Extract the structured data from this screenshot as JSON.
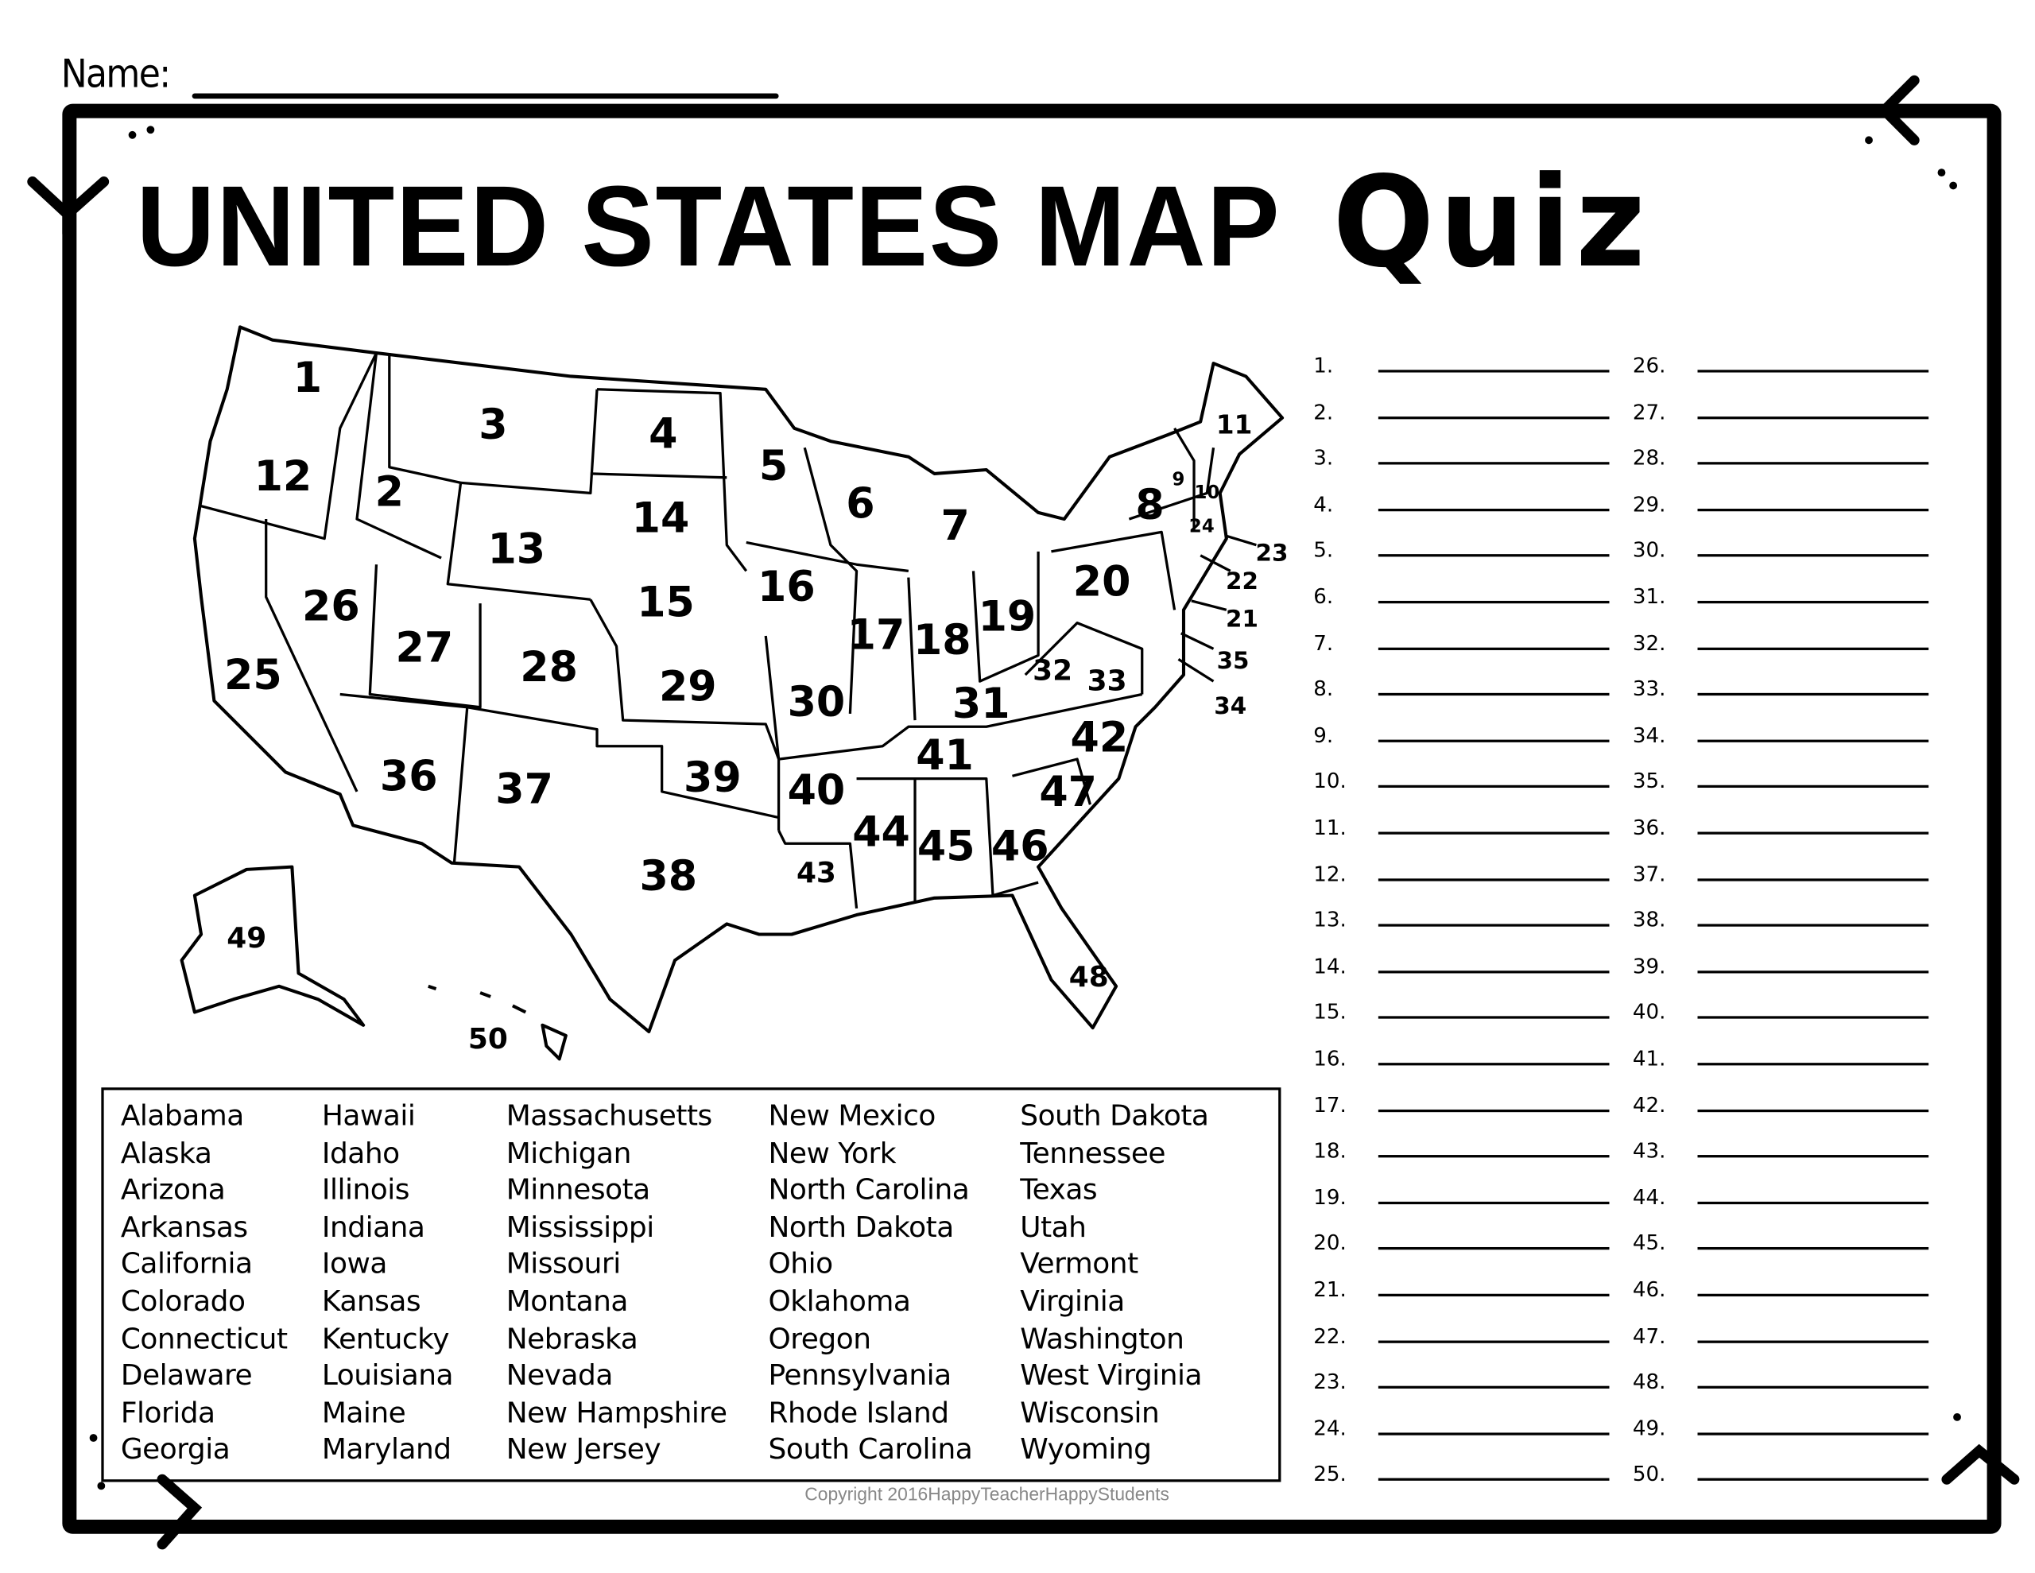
{
  "header": {
    "name_label": "Name:"
  },
  "title": {
    "main": "UNITED STATES MAP",
    "accent": "Quiz"
  },
  "map": {
    "state_numbers": [
      "1",
      "2",
      "3",
      "4",
      "5",
      "6",
      "7",
      "8",
      "9",
      "10",
      "11",
      "12",
      "13",
      "14",
      "15",
      "16",
      "17",
      "18",
      "19",
      "20",
      "21",
      "22",
      "23",
      "24",
      "25",
      "26",
      "27",
      "28",
      "29",
      "30",
      "31",
      "32",
      "33",
      "34",
      "35",
      "36",
      "37",
      "38",
      "39",
      "40",
      "41",
      "42",
      "43",
      "44",
      "45",
      "46",
      "47",
      "48",
      "49",
      "50"
    ]
  },
  "word_bank": {
    "columns": [
      [
        "Alabama",
        "Alaska",
        "Arizona",
        "Arkansas",
        "California",
        "Colorado",
        "Connecticut",
        "Delaware",
        "Florida",
        "Georgia"
      ],
      [
        "Hawaii",
        "Idaho",
        "Illinois",
        "Indiana",
        "Iowa",
        "Kansas",
        "Kentucky",
        "Louisiana",
        "Maine",
        "Maryland"
      ],
      [
        "Massachusetts",
        "Michigan",
        "Minnesota",
        "Mississippi",
        "Missouri",
        "Montana",
        "Nebraska",
        "Nevada",
        "New Hampshire",
        "New Jersey"
      ],
      [
        "New Mexico",
        "New York",
        "North Carolina",
        "North Dakota",
        "Ohio",
        "Oklahoma",
        "Oregon",
        "Pennsylvania",
        "Rhode Island",
        "South Carolina"
      ],
      [
        "South Dakota",
        "Tennessee",
        "Texas",
        "Utah",
        "Vermont",
        "Virginia",
        "Washington",
        "West Virginia",
        "Wisconsin",
        "Wyoming"
      ]
    ]
  },
  "answers": {
    "labels": [
      "1.",
      "2.",
      "3.",
      "4.",
      "5.",
      "6.",
      "7.",
      "8.",
      "9.",
      "10.",
      "11.",
      "12.",
      "13.",
      "14.",
      "15.",
      "16.",
      "17.",
      "18.",
      "19.",
      "20.",
      "21.",
      "22.",
      "23.",
      "24.",
      "25.",
      "26.",
      "27.",
      "28.",
      "29.",
      "30.",
      "31.",
      "32.",
      "33.",
      "34.",
      "35.",
      "36.",
      "37.",
      "38.",
      "39.",
      "40.",
      "41.",
      "42.",
      "43.",
      "44.",
      "45.",
      "46.",
      "47.",
      "48.",
      "49.",
      "50."
    ]
  },
  "footer": {
    "copyright": "Copyright 2016HappyTeacherHappyStudents"
  }
}
